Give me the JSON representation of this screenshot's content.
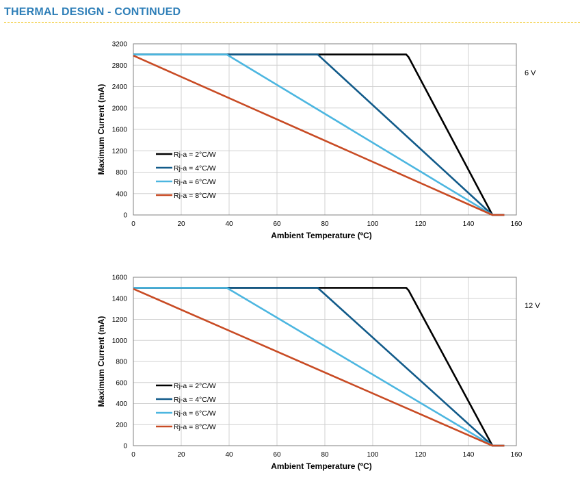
{
  "page": {
    "title": "THERMAL DESIGN - CONTINUED"
  },
  "chart_data": [
    {
      "type": "line",
      "title": "",
      "side_label": "6 V",
      "xlabel": "Ambient Temperature (ºC)",
      "ylabel": "Maximum Current (mA)",
      "xlim": [
        0,
        160
      ],
      "ylim": [
        0,
        3200
      ],
      "xticks": [
        0,
        20,
        40,
        60,
        80,
        100,
        120,
        140,
        160
      ],
      "yticks": [
        0,
        400,
        800,
        1200,
        1600,
        2000,
        2400,
        2800,
        3200
      ],
      "grid": true,
      "legend_position": "bottom-left",
      "series": [
        {
          "name": "Rj-a = 2°C/W",
          "color": "#000000",
          "points": [
            [
              0,
              3000
            ],
            [
              114,
              3000
            ],
            [
              115,
              2950
            ],
            [
              150,
              0
            ],
            [
              155,
              0
            ]
          ]
        },
        {
          "name": "Rj-a = 4°C/W",
          "color": "#125b8a",
          "points": [
            [
              0,
              3000
            ],
            [
              77,
              3000
            ],
            [
              150,
              0
            ],
            [
              155,
              0
            ]
          ]
        },
        {
          "name": "Rj-a = 6°C/W",
          "color": "#4cb6e0",
          "points": [
            [
              0,
              3000
            ],
            [
              39,
              3000
            ],
            [
              150,
              0
            ],
            [
              155,
              0
            ]
          ]
        },
        {
          "name": "Rj-a = 8°C/W",
          "color": "#c84b24",
          "points": [
            [
              0,
              2980
            ],
            [
              150,
              0
            ],
            [
              155,
              0
            ]
          ]
        }
      ]
    },
    {
      "type": "line",
      "title": "",
      "side_label": "12 V",
      "xlabel": "Ambient Temperature (ºC)",
      "ylabel": "Maximum Current (mA)",
      "xlim": [
        0,
        160
      ],
      "ylim": [
        0,
        1600
      ],
      "xticks": [
        0,
        20,
        40,
        60,
        80,
        100,
        120,
        140,
        160
      ],
      "yticks": [
        0,
        200,
        400,
        600,
        800,
        1000,
        1200,
        1400,
        1600
      ],
      "grid": true,
      "legend_position": "bottom-left",
      "series": [
        {
          "name": "Rj-a = 2°C/W",
          "color": "#000000",
          "points": [
            [
              0,
              1500
            ],
            [
              114,
              1500
            ],
            [
              115,
              1475
            ],
            [
              150,
              0
            ],
            [
              155,
              0
            ]
          ]
        },
        {
          "name": "Rj-a = 4°C/W",
          "color": "#125b8a",
          "points": [
            [
              0,
              1500
            ],
            [
              77,
              1500
            ],
            [
              150,
              0
            ],
            [
              155,
              0
            ]
          ]
        },
        {
          "name": "Rj-a = 6°C/W",
          "color": "#4cb6e0",
          "points": [
            [
              0,
              1500
            ],
            [
              39,
              1500
            ],
            [
              150,
              0
            ],
            [
              155,
              0
            ]
          ]
        },
        {
          "name": "Rj-a = 8°C/W",
          "color": "#c84b24",
          "points": [
            [
              0,
              1490
            ],
            [
              150,
              0
            ],
            [
              155,
              0
            ]
          ]
        }
      ]
    }
  ]
}
